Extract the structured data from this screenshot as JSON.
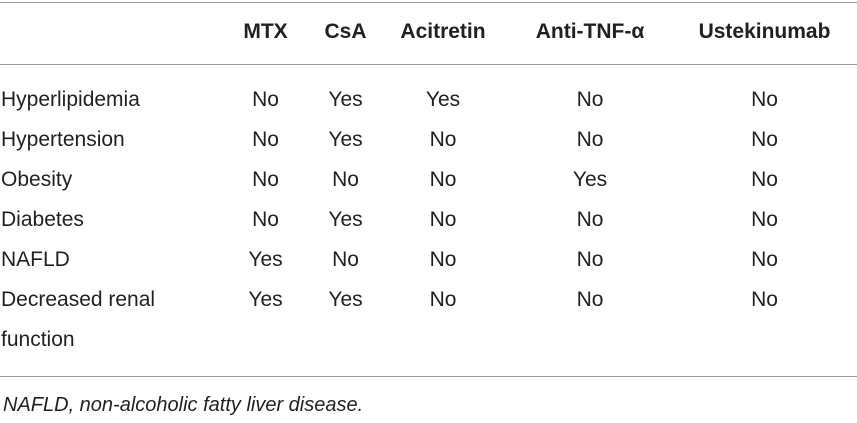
{
  "table": {
    "columns": [
      "",
      "MTX",
      "CsA",
      "Acitretin",
      "Anti-TNF-α",
      "Ustekinumab"
    ],
    "rows": [
      {
        "label": "Hyperlipidemia",
        "values": [
          "No",
          "Yes",
          "Yes",
          "No",
          "No"
        ]
      },
      {
        "label": "Hypertension",
        "values": [
          "No",
          "Yes",
          "No",
          "No",
          "No"
        ]
      },
      {
        "label": "Obesity",
        "values": [
          "No",
          "No",
          "No",
          "Yes",
          "No"
        ]
      },
      {
        "label": "Diabetes",
        "values": [
          "No",
          "Yes",
          "No",
          "No",
          "No"
        ]
      },
      {
        "label": "NAFLD",
        "values": [
          "Yes",
          "No",
          "No",
          "No",
          "No"
        ]
      },
      {
        "label": "Decreased renal function",
        "values": [
          "Yes",
          "Yes",
          "No",
          "No",
          "No"
        ]
      }
    ]
  },
  "footnote": "NAFLD, non-alcoholic fatty liver disease."
}
